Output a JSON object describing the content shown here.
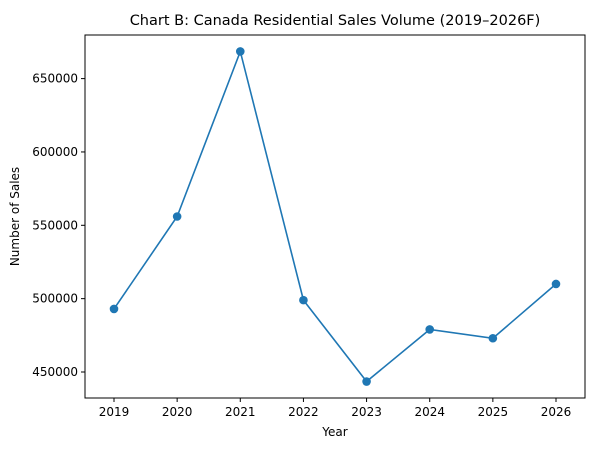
{
  "chart_data": {
    "type": "line",
    "title": "Chart B: Canada Residential Sales Volume (2019–2026F)",
    "xlabel": "Year",
    "ylabel": "Number of Sales",
    "x": [
      "2019",
      "2020",
      "2021",
      "2022",
      "2023",
      "2024",
      "2025",
      "2026"
    ],
    "series": [
      {
        "values": [
          493000,
          556000,
          668500,
          499000,
          443500,
          479000,
          473000,
          510000
        ],
        "color": "#1f77b4",
        "marker": "circle"
      }
    ],
    "yticks": [
      450000,
      500000,
      550000,
      600000,
      650000
    ],
    "ytick_labels": [
      "450000",
      "500000",
      "550000",
      "600000",
      "650000"
    ],
    "ylim": [
      432275,
      679725
    ],
    "grid": false,
    "legend": false
  }
}
